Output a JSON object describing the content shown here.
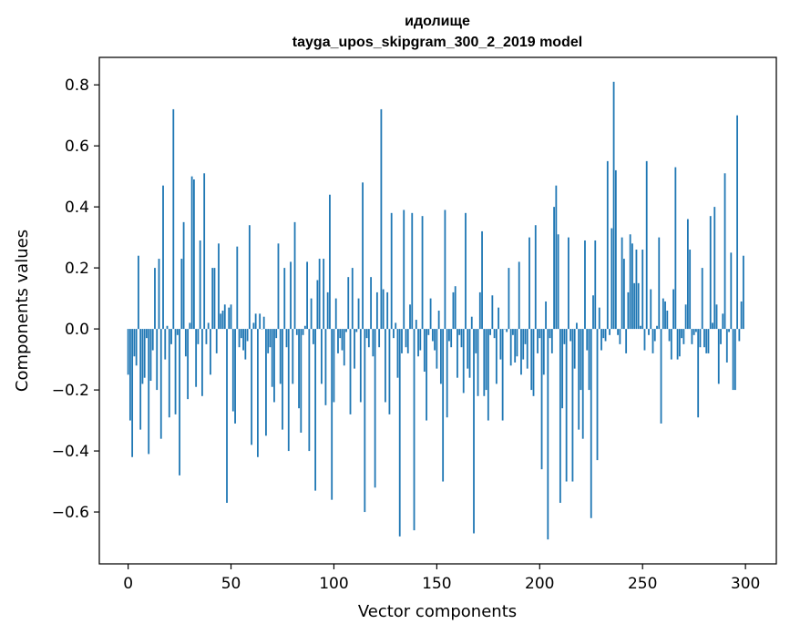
{
  "chart_data": {
    "type": "bar",
    "title": "идолище",
    "subtitle": "tayga_upos_skipgram_300_2_2019 model",
    "xlabel": "Vector components",
    "ylabel": "Components values",
    "xlim": [
      -14,
      315
    ],
    "ylim": [
      -0.77,
      0.89
    ],
    "xticks": [
      0,
      50,
      100,
      150,
      200,
      250,
      300
    ],
    "xtick_labels": [
      "0",
      "50",
      "100",
      "150",
      "200",
      "250",
      "300"
    ],
    "yticks": [
      -0.6,
      -0.4,
      -0.2,
      0.0,
      0.2,
      0.4,
      0.6,
      0.8
    ],
    "ytick_labels": [
      "−0.6",
      "−0.4",
      "−0.2",
      "0.0",
      "0.2",
      "0.4",
      "0.6",
      "0.8"
    ],
    "grid": false,
    "bar_color": "#1f77b4",
    "x": "integers 0..299",
    "values": [
      -0.15,
      -0.3,
      -0.42,
      -0.09,
      -0.12,
      0.24,
      -0.33,
      -0.18,
      -0.16,
      -0.03,
      -0.41,
      -0.17,
      -0.07,
      0.2,
      -0.2,
      0.23,
      -0.36,
      0.47,
      -0.1,
      0.01,
      -0.29,
      -0.05,
      0.72,
      -0.28,
      -0.02,
      -0.48,
      0.23,
      0.35,
      -0.09,
      -0.23,
      0.02,
      0.5,
      0.49,
      -0.19,
      -0.05,
      0.29,
      -0.22,
      0.51,
      -0.05,
      0.02,
      -0.15,
      0.2,
      0.2,
      -0.08,
      0.28,
      0.05,
      0.06,
      0.08,
      -0.57,
      0.07,
      0.08,
      -0.27,
      -0.31,
      0.27,
      -0.06,
      -0.03,
      -0.07,
      -0.1,
      -0.04,
      0.34,
      -0.38,
      0.02,
      0.05,
      -0.42,
      0.05,
      0.0,
      0.04,
      -0.35,
      -0.08,
      -0.06,
      -0.19,
      -0.24,
      -0.03,
      0.28,
      -0.18,
      -0.33,
      0.2,
      -0.06,
      -0.4,
      0.22,
      -0.18,
      0.35,
      -0.02,
      -0.26,
      -0.34,
      -0.02,
      0.01,
      0.22,
      -0.4,
      0.1,
      -0.05,
      -0.53,
      0.16,
      0.23,
      -0.18,
      0.23,
      -0.25,
      0.12,
      0.44,
      -0.56,
      -0.24,
      0.1,
      -0.08,
      -0.03,
      -0.07,
      -0.12,
      -0.01,
      0.17,
      -0.28,
      0.2,
      -0.13,
      -0.01,
      0.1,
      -0.24,
      0.48,
      -0.6,
      -0.03,
      -0.06,
      0.17,
      -0.09,
      -0.52,
      0.12,
      -0.06,
      0.72,
      0.13,
      -0.24,
      0.12,
      -0.28,
      0.38,
      -0.03,
      0.02,
      -0.16,
      -0.68,
      -0.08,
      0.39,
      -0.06,
      -0.08,
      0.08,
      0.38,
      -0.66,
      0.03,
      -0.09,
      -0.07,
      0.37,
      -0.14,
      -0.3,
      -0.02,
      0.1,
      -0.04,
      -0.07,
      -0.13,
      0.06,
      -0.18,
      -0.5,
      0.39,
      -0.29,
      -0.04,
      -0.06,
      0.12,
      0.14,
      -0.16,
      -0.02,
      -0.06,
      -0.21,
      0.38,
      -0.13,
      -0.16,
      0.04,
      -0.67,
      -0.08,
      -0.22,
      0.12,
      0.32,
      -0.22,
      -0.2,
      -0.3,
      -0.02,
      0.11,
      -0.03,
      -0.18,
      0.07,
      -0.1,
      -0.3,
      0.0,
      -0.01,
      0.2,
      -0.12,
      -0.02,
      -0.11,
      -0.09,
      0.22,
      -0.15,
      -0.1,
      -0.05,
      -0.13,
      0.3,
      -0.2,
      -0.22,
      0.34,
      -0.08,
      -0.03,
      -0.46,
      -0.15,
      0.09,
      -0.69,
      -0.03,
      -0.08,
      0.4,
      0.47,
      0.31,
      -0.57,
      -0.26,
      -0.05,
      -0.5,
      0.3,
      -0.04,
      -0.5,
      -0.13,
      0.02,
      -0.33,
      -0.2,
      -0.36,
      0.29,
      -0.07,
      -0.2,
      -0.62,
      0.11,
      0.29,
      -0.43,
      0.07,
      -0.07,
      -0.03,
      -0.04,
      0.55,
      -0.02,
      0.33,
      0.81,
      0.52,
      -0.02,
      -0.05,
      0.3,
      0.23,
      -0.08,
      0.12,
      0.31,
      0.28,
      0.15,
      0.26,
      0.15,
      0.01,
      0.26,
      -0.07,
      0.55,
      -0.02,
      0.13,
      -0.08,
      -0.04,
      0.01,
      0.3,
      -0.31,
      0.1,
      0.09,
      0.06,
      -0.04,
      -0.1,
      0.13,
      0.53,
      -0.1,
      -0.09,
      -0.03,
      -0.05,
      0.08,
      0.36,
      0.26,
      -0.05,
      -0.02,
      -0.01,
      -0.29,
      -0.06,
      0.2,
      -0.06,
      -0.08,
      -0.08,
      0.37,
      0.02,
      0.4,
      0.08,
      -0.18,
      -0.05,
      0.05,
      0.51,
      -0.11,
      -0.01,
      0.25,
      -0.2,
      -0.2,
      0.7,
      -0.04,
      0.09,
      0.24
    ]
  }
}
